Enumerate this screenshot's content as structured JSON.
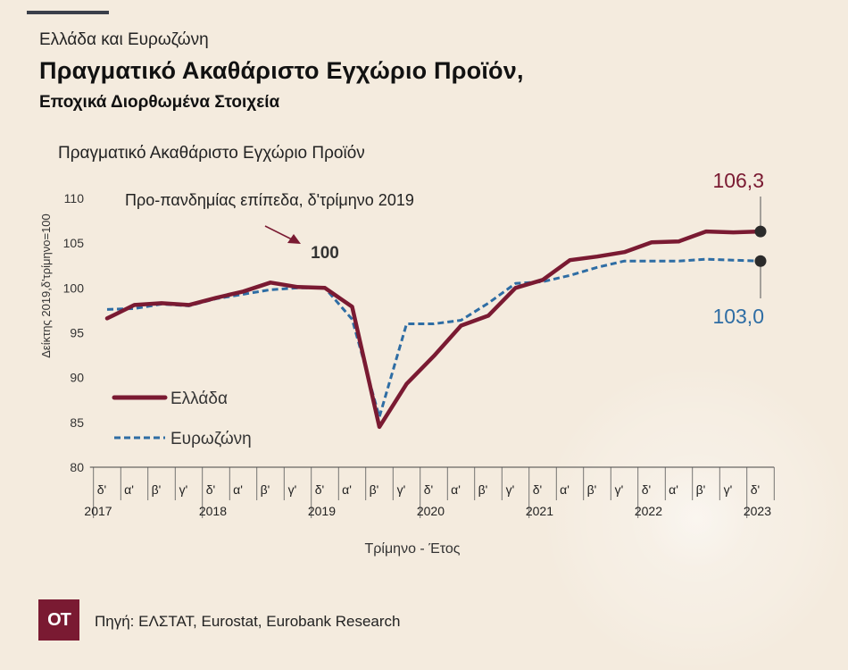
{
  "header": {
    "supertitle": "Ελλάδα και Ευρωζώνη",
    "title": "Πραγματικό Ακαθάριστο Εγχώριο Προϊόν,",
    "subtitle": "Εποχικά Διορθωμένα Στοιχεία"
  },
  "footer": {
    "logo_text": "ΟΤ",
    "source": "Πηγή: ΕΛΣΤΑΤ, Eurostat, Eurobank Research"
  },
  "chart_data": {
    "type": "line",
    "title": "Πραγματικό Ακαθάριστο Εγχώριο Προϊόν",
    "xlabel": "Τρίμηνο - Έτος",
    "ylabel": "Δείκτης 2019,δ'τρίμηνο=100",
    "ylim": [
      80,
      110
    ],
    "yticks": [
      80,
      85,
      90,
      95,
      100,
      105,
      110
    ],
    "grid": false,
    "legend_position": "left",
    "categories": [
      "δ'",
      "α'",
      "β'",
      "γ'",
      "δ'",
      "α'",
      "β'",
      "γ'",
      "δ'",
      "α'",
      "β'",
      "γ'",
      "δ'",
      "α'",
      "β'",
      "γ'",
      "δ'",
      "α'",
      "β'",
      "γ'",
      "δ'",
      "α'",
      "β'",
      "γ'",
      "δ'"
    ],
    "year_labels": [
      {
        "label": "2017",
        "index": 0
      },
      {
        "label": "2018",
        "index": 4
      },
      {
        "label": "2019",
        "index": 8
      },
      {
        "label": "2020",
        "index": 12
      },
      {
        "label": "2021",
        "index": 16
      },
      {
        "label": "2022",
        "index": 20
      },
      {
        "label": "2023",
        "index": 24
      }
    ],
    "series": [
      {
        "name": "Ελλάδα",
        "color": "#7a1a32",
        "style": "solid",
        "values": [
          96.6,
          98.1,
          98.3,
          98.1,
          98.9,
          99.6,
          100.6,
          100.1,
          100.0,
          97.9,
          84.5,
          89.3,
          92.4,
          95.8,
          96.9,
          100.0,
          100.9,
          103.1,
          103.5,
          104.0,
          105.1,
          105.2,
          106.3,
          106.2,
          106.3
        ],
        "end_label": "106,3"
      },
      {
        "name": "Ευρωζώνη",
        "color": "#2e6da4",
        "style": "dashed",
        "values": [
          97.6,
          97.7,
          98.2,
          98.0,
          98.8,
          99.3,
          99.8,
          100.0,
          100.0,
          96.5,
          85.6,
          96.0,
          96.0,
          96.4,
          98.3,
          100.5,
          100.7,
          101.4,
          102.3,
          103.0,
          103.0,
          103.0,
          103.2,
          103.1,
          103.0
        ],
        "end_label": "103,0"
      }
    ],
    "annotations": [
      {
        "text": "Προ-πανδημίας επίπεδα, δ'τρίμηνο 2019",
        "target_index": 8
      },
      {
        "text": "100",
        "target_index": 8
      }
    ]
  }
}
